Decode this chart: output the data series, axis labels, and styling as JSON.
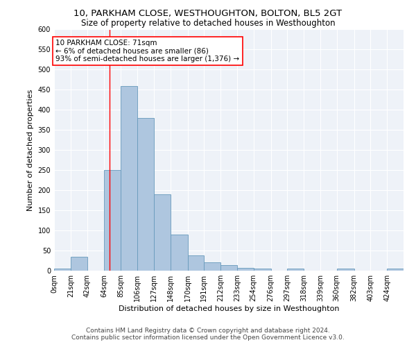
{
  "title": "10, PARKHAM CLOSE, WESTHOUGHTON, BOLTON, BL5 2GT",
  "subtitle": "Size of property relative to detached houses in Westhoughton",
  "xlabel": "Distribution of detached houses by size in Westhoughton",
  "ylabel": "Number of detached properties",
  "footer_line1": "Contains HM Land Registry data © Crown copyright and database right 2024.",
  "footer_line2": "Contains public sector information licensed under the Open Government Licence v3.0.",
  "annotation_line1": "10 PARKHAM CLOSE: 71sqm",
  "annotation_line2": "← 6% of detached houses are smaller (86)",
  "annotation_line3": "93% of semi-detached houses are larger (1,376) →",
  "bar_color": "#aec6df",
  "bar_edge_color": "#6699bb",
  "ref_line_x": 71,
  "categories": [
    "0sqm",
    "21sqm",
    "42sqm",
    "64sqm",
    "85sqm",
    "106sqm",
    "127sqm",
    "148sqm",
    "170sqm",
    "191sqm",
    "212sqm",
    "233sqm",
    "254sqm",
    "276sqm",
    "297sqm",
    "318sqm",
    "339sqm",
    "360sqm",
    "382sqm",
    "403sqm",
    "424sqm"
  ],
  "bin_edges": [
    0,
    21,
    42,
    64,
    85,
    106,
    127,
    148,
    170,
    191,
    212,
    233,
    254,
    276,
    297,
    318,
    339,
    360,
    382,
    403,
    424,
    445
  ],
  "bar_heights": [
    5,
    35,
    0,
    250,
    460,
    380,
    190,
    90,
    38,
    20,
    13,
    7,
    5,
    0,
    5,
    0,
    0,
    5,
    0,
    0,
    5
  ],
  "ylim": [
    0,
    600
  ],
  "yticks": [
    0,
    50,
    100,
    150,
    200,
    250,
    300,
    350,
    400,
    450,
    500,
    550,
    600
  ],
  "bg_color": "#eef2f8",
  "grid_color": "#ffffff",
  "title_fontsize": 9.5,
  "subtitle_fontsize": 8.5,
  "axis_label_fontsize": 8,
  "tick_fontsize": 7,
  "footer_fontsize": 6.5,
  "annotation_fontsize": 7.5
}
